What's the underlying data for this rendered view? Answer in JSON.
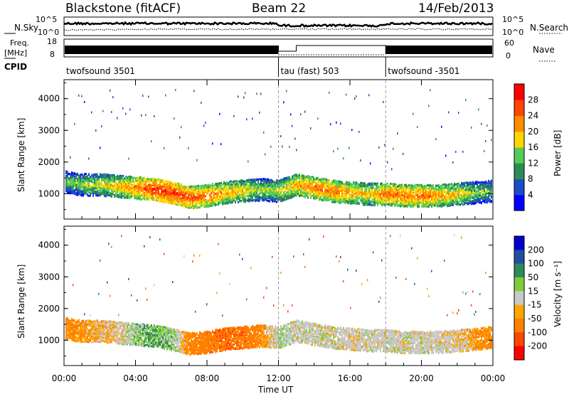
{
  "header": {
    "station": "Blackstone (fitACF)",
    "beam": "Beam 22",
    "date": "14/Feb/2013"
  },
  "top_panels": {
    "nsky_label": "N.Sky",
    "nsky_ticks": [
      "10^5",
      "10^0"
    ],
    "nsearch_label": "N.Search",
    "nsearch_ticks": [
      "10^5",
      "10^0"
    ],
    "freq_label": "Freq.",
    "freq_unit": "[MHz]",
    "freq_ticks": [
      "18",
      "8"
    ],
    "nave_label": "Nave",
    "nave_ticks": [
      "60",
      "0"
    ],
    "cpid_label": "CPID"
  },
  "cpid_segments": [
    {
      "name": "twofsound 3501",
      "start_hour": 0,
      "end_hour": 12
    },
    {
      "name": "tau (fast) 503",
      "start_hour": 12,
      "end_hour": 18
    },
    {
      "name": "twofsound -3501",
      "start_hour": 18,
      "end_hour": 24
    }
  ],
  "x_axis": {
    "label": "Time UT",
    "ticks": [
      "00:00",
      "04:00",
      "08:00",
      "12:00",
      "16:00",
      "20:00",
      "00:00"
    ],
    "range_hours": [
      0,
      24
    ]
  },
  "power_panel": {
    "ylabel": "Slant Range [km]",
    "yticks": [
      "1000",
      "2000",
      "3000",
      "4000"
    ],
    "colorbar_label": "Power [dB]",
    "colorbar_ticks": [
      "4",
      "8",
      "12",
      "16",
      "20",
      "24",
      "28"
    ],
    "colors": [
      "#0000ff",
      "#1c4dc8",
      "#2e8b57",
      "#55cc55",
      "#ffd700",
      "#ff8c00",
      "#ff4500",
      "#ff0000"
    ]
  },
  "velocity_panel": {
    "ylabel": "Slant Range [km]",
    "yticks": [
      "1000",
      "2000",
      "3000",
      "4000"
    ],
    "colorbar_label": "Velocity [m s⁻¹]",
    "colorbar_ticks": [
      "200",
      "100",
      "50",
      "15",
      "-15",
      "-50",
      "-100",
      "-200"
    ],
    "colors": [
      "#0000cd",
      "#1e4fa0",
      "#2e8b57",
      "#7ccd3c",
      "#c8c8c8",
      "#ffa500",
      "#ff7f00",
      "#ff4500",
      "#ff0000"
    ]
  },
  "chart_data": [
    {
      "type": "heatmap",
      "title": "Blackstone (fitACF) Beam 22 14/Feb/2013 - Power",
      "xlabel": "Time UT",
      "ylabel": "Slant Range [km]",
      "colorbar": "Power [dB]",
      "x_hours": [
        0,
        1,
        2,
        3,
        4,
        5,
        6,
        7,
        8,
        9,
        10,
        11,
        12,
        13,
        14,
        15,
        16,
        17,
        18,
        19,
        20,
        21,
        22,
        23,
        24
      ],
      "band_center_km": [
        1400,
        1300,
        1300,
        1250,
        1200,
        1150,
        1050,
        900,
        950,
        1050,
        1100,
        1150,
        1100,
        1300,
        1200,
        1100,
        1050,
        1000,
        1000,
        950,
        950,
        950,
        1000,
        1050,
        1100
      ],
      "band_peak_power_db": [
        14,
        16,
        18,
        20,
        24,
        28,
        28,
        26,
        24,
        22,
        20,
        16,
        18,
        22,
        24,
        24,
        22,
        20,
        24,
        24,
        24,
        22,
        20,
        16,
        14
      ],
      "ylim": [
        200,
        4600
      ],
      "xlim": [
        0,
        24
      ]
    },
    {
      "type": "heatmap",
      "title": "Blackstone (fitACF) Beam 22 14/Feb/2013 - Velocity",
      "xlabel": "Time UT",
      "ylabel": "Slant Range [km]",
      "colorbar": "Velocity [m s⁻¹]",
      "x_hours": [
        0,
        1,
        2,
        3,
        4,
        5,
        6,
        7,
        8,
        9,
        10,
        11,
        12,
        13,
        14,
        15,
        16,
        17,
        18,
        19,
        20,
        21,
        22,
        23,
        24
      ],
      "band_center_km": [
        1400,
        1300,
        1300,
        1250,
        1200,
        1150,
        1050,
        900,
        950,
        1050,
        1100,
        1150,
        1100,
        1300,
        1200,
        1100,
        1050,
        1000,
        1000,
        950,
        950,
        950,
        1000,
        1050,
        1100
      ],
      "band_velocity_ms": [
        -40,
        -30,
        -20,
        -10,
        20,
        30,
        20,
        -40,
        -60,
        -70,
        -60,
        -40,
        10,
        0,
        0,
        0,
        -5,
        0,
        0,
        0,
        0,
        0,
        -10,
        -30,
        -40
      ],
      "ylim": [
        200,
        4600
      ],
      "xlim": [
        0,
        24
      ]
    }
  ]
}
